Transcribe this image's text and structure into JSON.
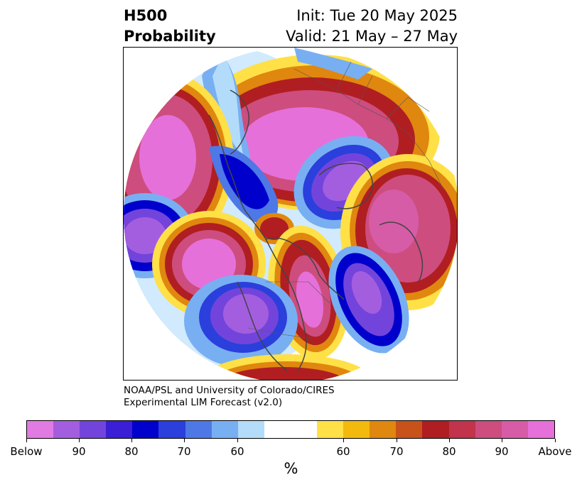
{
  "title": {
    "left_line1": "H500",
    "left_line2": "Probability",
    "right_line1": "Init: Tue 20 May 2025",
    "right_line2": "Valid: 21 May – 27 May"
  },
  "credit": {
    "line1": "NOAA/PSL and University of Colorado/CIRES",
    "line2": "Experimental LIM Forecast (v2.0)"
  },
  "colorbar": {
    "colors": [
      "#e27ae3",
      "#a35ee0",
      "#7344db",
      "#3a1fd6",
      "#0000cc",
      "#2a3fdc",
      "#4e78e6",
      "#78aff2",
      "#b3dcfb",
      "#ffffff",
      "#ffffff",
      "#ffe047",
      "#f3b90d",
      "#e0870f",
      "#c8521a",
      "#b01e22",
      "#c2334c",
      "#cd4d7e",
      "#d75ca7",
      "#e670d9"
    ],
    "ticks": [
      "Below",
      "90",
      "80",
      "70",
      "60",
      "60",
      "70",
      "80",
      "90",
      "Above"
    ],
    "unit": "%"
  },
  "map": {
    "projection": "north-polar stereographic",
    "palette": {
      "above_high": "#e670d9",
      "above_mid": "#c2334c",
      "above_low": "#f3b90d",
      "below_high": "#a35ee0",
      "below_mid": "#0000cc",
      "below_low": "#78aff2",
      "coast": "#444444"
    }
  }
}
